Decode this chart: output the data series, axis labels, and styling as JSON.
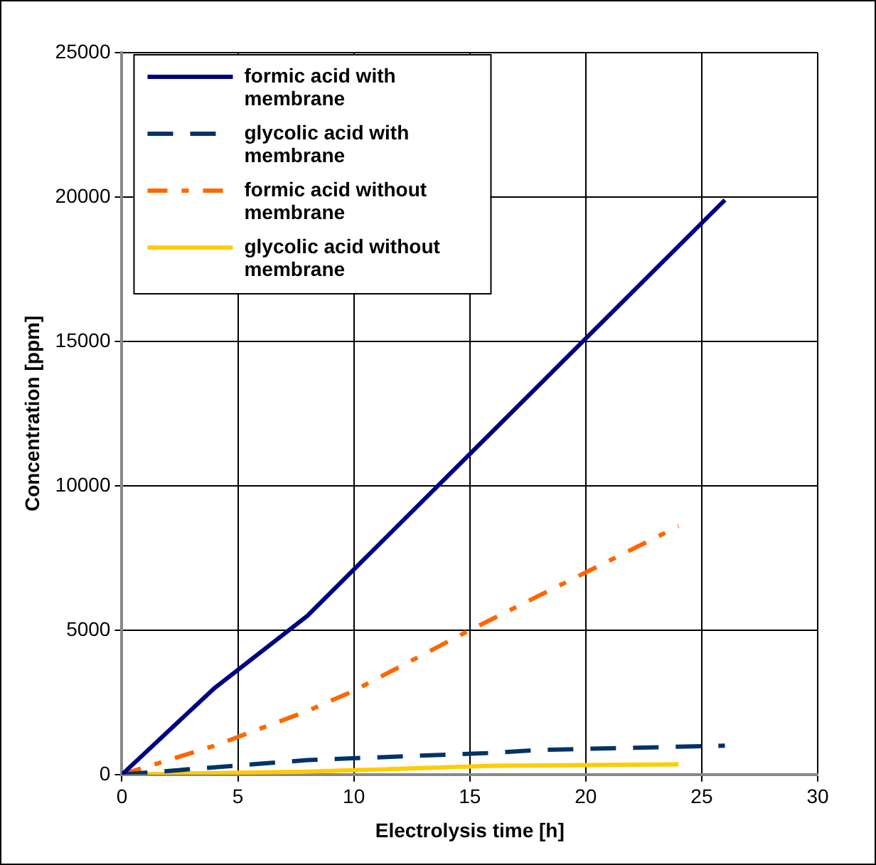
{
  "chart_data": {
    "type": "line",
    "xlabel": "Electrolysis time [h]",
    "ylabel": "Concentration [ppm]",
    "xlim": [
      0,
      30
    ],
    "xticks": [
      0,
      5,
      10,
      15,
      20,
      25,
      30
    ],
    "ylim": [
      0,
      25000
    ],
    "yticks": [
      0,
      5000,
      10000,
      15000,
      20000,
      25000
    ],
    "grid": true,
    "legend": "top left",
    "marker": "none",
    "series": [
      {
        "name": "formic acid with membrane",
        "color": "#000080",
        "line_style": "solid",
        "x": [
          0,
          4,
          8,
          26
        ],
        "values": [
          0,
          3000,
          5500,
          19900
        ]
      },
      {
        "name": "glycolic acid with membrane",
        "color": "#003366",
        "line_style": "dashed",
        "x": [
          0,
          8,
          16,
          18,
          26
        ],
        "values": [
          0,
          500,
          750,
          850,
          1000
        ]
      },
      {
        "name": "formic acid without membrane",
        "color": "#ff6600",
        "line_style": "dotted",
        "x": [
          0,
          4,
          8,
          10,
          15,
          24
        ],
        "values": [
          0,
          1000,
          2200,
          2900,
          5000,
          8600
        ]
      },
      {
        "name": "glycolic acid without membrane",
        "color": "#ffcc00",
        "line_style": "solid",
        "x": [
          0,
          8,
          16,
          24
        ],
        "values": [
          0,
          100,
          300,
          350
        ]
      }
    ]
  }
}
